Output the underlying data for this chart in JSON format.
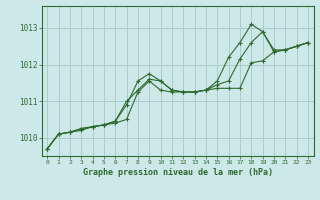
{
  "title": "Graphe pression niveau de la mer (hPa)",
  "bg_color": "#cce8e8",
  "grid_color": "#aacccc",
  "line_color": "#2d6a2d",
  "xlim": [
    -0.5,
    23.5
  ],
  "ylim": [
    1009.5,
    1013.6
  ],
  "yticks": [
    1010,
    1011,
    1012,
    1013
  ],
  "xticks": [
    0,
    1,
    2,
    3,
    4,
    5,
    6,
    7,
    8,
    9,
    10,
    11,
    12,
    13,
    14,
    15,
    16,
    17,
    18,
    19,
    20,
    21,
    22,
    23
  ],
  "series1_x": [
    0,
    1,
    2,
    3,
    4,
    5,
    6,
    7,
    8,
    9,
    10,
    11,
    12,
    13,
    14,
    15,
    16,
    17,
    18,
    19,
    20,
    21,
    22,
    23
  ],
  "series1_y": [
    1009.7,
    1010.1,
    1010.15,
    1010.2,
    1010.3,
    1010.35,
    1010.4,
    1010.5,
    1011.25,
    1011.55,
    1011.3,
    1011.25,
    1011.25,
    1011.25,
    1011.3,
    1011.35,
    1011.35,
    1011.35,
    1012.05,
    1012.1,
    1012.35,
    1012.4,
    1012.5,
    1012.6
  ],
  "series2_x": [
    0,
    1,
    2,
    3,
    4,
    5,
    6,
    7,
    8,
    9,
    10,
    11,
    12,
    13,
    14,
    15,
    16,
    17,
    18,
    19,
    20,
    21,
    22,
    23
  ],
  "series2_y": [
    1009.7,
    1010.1,
    1010.15,
    1010.25,
    1010.3,
    1010.35,
    1010.45,
    1010.9,
    1011.55,
    1011.75,
    1011.55,
    1011.3,
    1011.25,
    1011.25,
    1011.3,
    1011.45,
    1011.55,
    1012.15,
    1012.6,
    1012.9,
    1012.4,
    1012.4,
    1012.5,
    1012.6
  ],
  "series3_x": [
    0,
    1,
    2,
    3,
    4,
    5,
    6,
    7,
    8,
    9,
    10,
    11,
    12,
    13,
    14,
    15,
    16,
    17,
    18,
    19,
    20,
    21,
    22,
    23
  ],
  "series3_y": [
    1009.7,
    1010.1,
    1010.15,
    1010.25,
    1010.3,
    1010.35,
    1010.45,
    1011.0,
    1011.3,
    1011.6,
    1011.55,
    1011.3,
    1011.25,
    1011.25,
    1011.3,
    1011.55,
    1012.2,
    1012.6,
    1013.1,
    1012.9,
    1012.35,
    1012.4,
    1012.5,
    1012.6
  ]
}
